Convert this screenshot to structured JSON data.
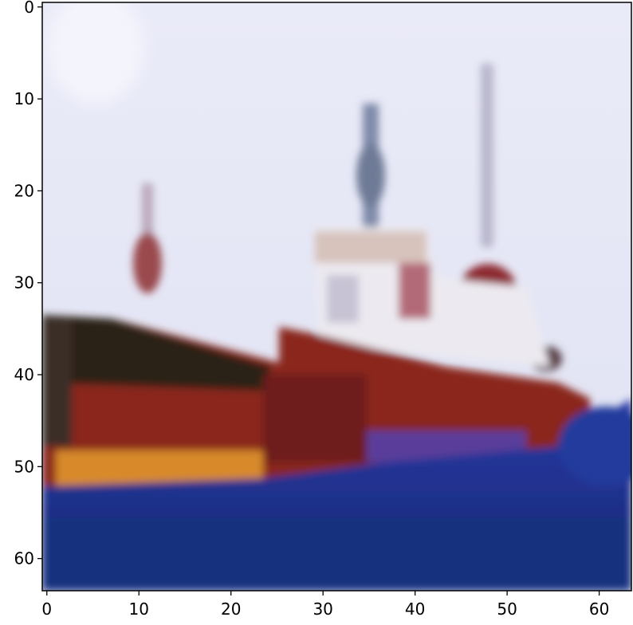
{
  "figure": {
    "kind": "image-plot",
    "subject": "boat",
    "grid": false
  },
  "axes": {
    "x_ticks": [
      "0",
      "10",
      "20",
      "30",
      "40",
      "50",
      "60"
    ],
    "y_ticks": [
      "0",
      "10",
      "20",
      "30",
      "40",
      "50",
      "60"
    ],
    "x_values": [
      0,
      10,
      20,
      30,
      40,
      50,
      60
    ],
    "y_values": [
      0,
      10,
      20,
      30,
      40,
      50,
      60
    ],
    "xlim": [
      -0.5,
      63.5
    ],
    "ylim": [
      63.5,
      -0.5
    ],
    "y_inverted": true
  },
  "colors": {
    "sky": "#e4e6f6",
    "hull_dark": "#2a2218",
    "hull_red": "#8e2a1e",
    "stripe_orange": "#d48a2c",
    "cabin_white": "#ecebf2",
    "water": "#1b3596",
    "spine": "#000000"
  }
}
